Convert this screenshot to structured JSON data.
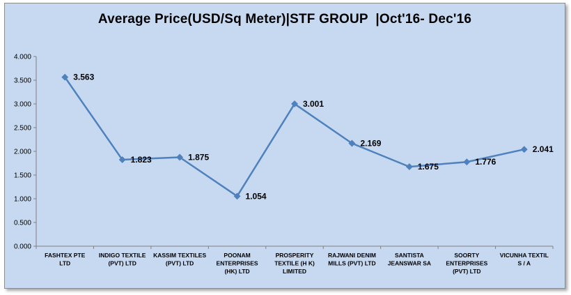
{
  "chart_data": {
    "type": "line",
    "title": "Average Price(USD/Sq Meter)|STF GROUP  |Oct'16- Dec'16",
    "xlabel": "",
    "ylabel": "",
    "ylim": [
      0,
      4
    ],
    "y_ticks": [
      "0.000",
      "0.500",
      "1.000",
      "1.500",
      "2.000",
      "2.500",
      "3.000",
      "3.500",
      "4.000"
    ],
    "grid": false,
    "legend": "none",
    "line_color": "#4f81bd",
    "categories": [
      [
        "FASHTEX PTE",
        "LTD"
      ],
      [
        "INDIGO TEXTILE",
        "(PVT) LTD"
      ],
      [
        "KASSIM TEXTILES",
        "(PVT) LTD"
      ],
      [
        "POONAM",
        "ENTERPRISES",
        "(HK) LTD"
      ],
      [
        "PROSPERITY",
        "TEXTILE (H K)",
        "LIMITED"
      ],
      [
        "RAJWANI DENIM",
        "MILLS (PVT) LTD"
      ],
      [
        "SANTISTA",
        "JEANSWAR SA"
      ],
      [
        "SOORTY",
        "ENTERPRISES",
        "(PVT) LTD"
      ],
      [
        "VICUNHA TEXTIL",
        "S / A"
      ]
    ],
    "values": [
      3.563,
      1.823,
      1.875,
      1.054,
      3.001,
      2.169,
      1.675,
      1.776,
      2.041
    ],
    "data_labels": [
      "3.563",
      "1.823",
      "1.875",
      "1.054",
      "3.001",
      "2.169",
      "1.675",
      "1.776",
      "2.041"
    ]
  }
}
